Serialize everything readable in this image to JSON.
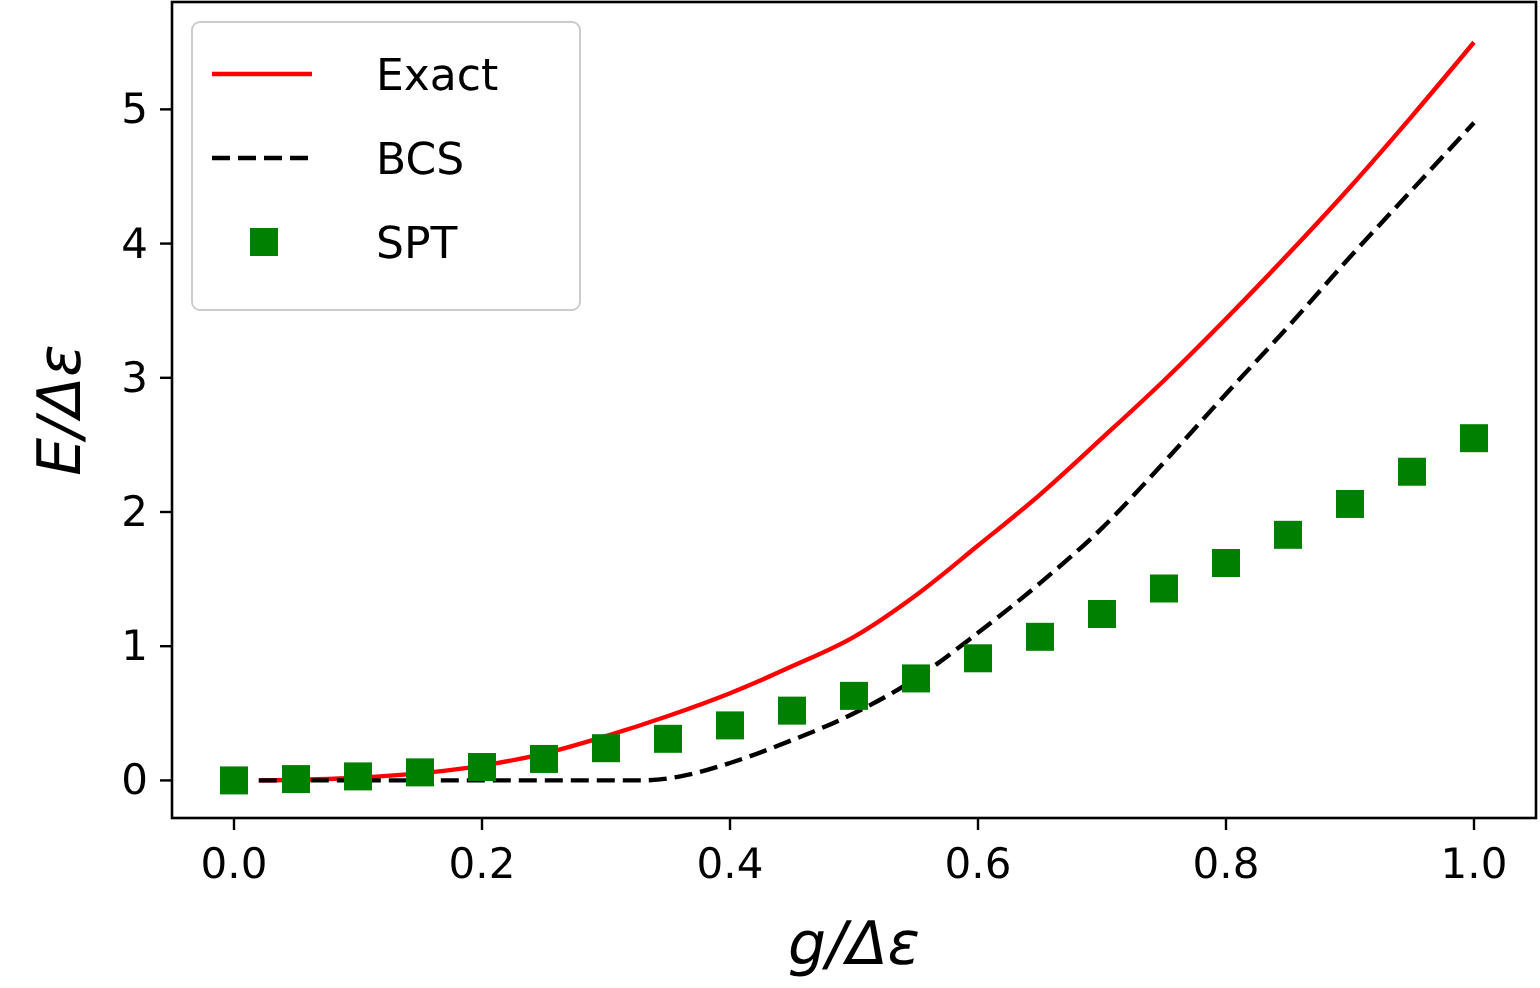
{
  "chart_data": {
    "type": "line",
    "xlabel": "g/Δε",
    "ylabel": "E/Δε",
    "xlim": [
      -0.05,
      1.05
    ],
    "ylim": [
      -0.28,
      5.8
    ],
    "xticks": [
      {
        "value": 0,
        "label": "0.0"
      },
      0.2,
      0.4,
      0.6,
      0.8,
      {
        "value": 1,
        "label": "1.0"
      }
    ],
    "yticks": [
      0,
      1,
      2,
      3,
      4,
      5
    ],
    "legend": "top left",
    "grid": false,
    "series": [
      {
        "name": "Exact",
        "color": "#ff0000",
        "line_style": "solid",
        "marker": "none",
        "x": [
          0.02,
          0.1,
          0.2,
          0.25,
          0.3,
          0.35,
          0.4,
          0.45,
          0.5,
          0.55,
          0.6,
          0.65,
          0.7,
          0.75,
          0.8,
          0.85,
          0.9,
          0.95,
          1.0
        ],
        "values": [
          0,
          0.02,
          0.11,
          0.2,
          0.33,
          0.48,
          0.65,
          0.85,
          1.07,
          1.38,
          1.75,
          2.13,
          2.55,
          2.98,
          3.44,
          3.92,
          4.42,
          4.95,
          5.5
        ]
      },
      {
        "name": "BCS",
        "color": "#000000",
        "line_style": "dashed",
        "marker": "none",
        "x": [
          0.02,
          0.3,
          0.33,
          0.36,
          0.4,
          0.45,
          0.5,
          0.55,
          0.6,
          0.65,
          0.7,
          0.75,
          0.8,
          0.85,
          0.9,
          0.95,
          1.0
        ],
        "values": [
          0,
          0,
          0,
          0.03,
          0.13,
          0.3,
          0.5,
          0.76,
          1.1,
          1.47,
          1.88,
          2.37,
          2.88,
          3.38,
          3.9,
          4.4,
          4.9
        ]
      },
      {
        "name": "SPT",
        "type": "scatter",
        "color": "#008000",
        "marker": "square",
        "x": [
          0,
          0.05,
          0.1,
          0.15,
          0.2,
          0.25,
          0.3,
          0.35,
          0.4,
          0.45,
          0.5,
          0.55,
          0.6,
          0.65,
          0.7,
          0.75,
          0.8,
          0.85,
          0.9,
          0.95,
          1.0
        ],
        "values": [
          0,
          0.01,
          0.03,
          0.06,
          0.1,
          0.16,
          0.24,
          0.31,
          0.41,
          0.52,
          0.63,
          0.76,
          0.91,
          1.07,
          1.24,
          1.43,
          1.62,
          1.83,
          2.06,
          2.3,
          2.55
        ]
      }
    ]
  }
}
